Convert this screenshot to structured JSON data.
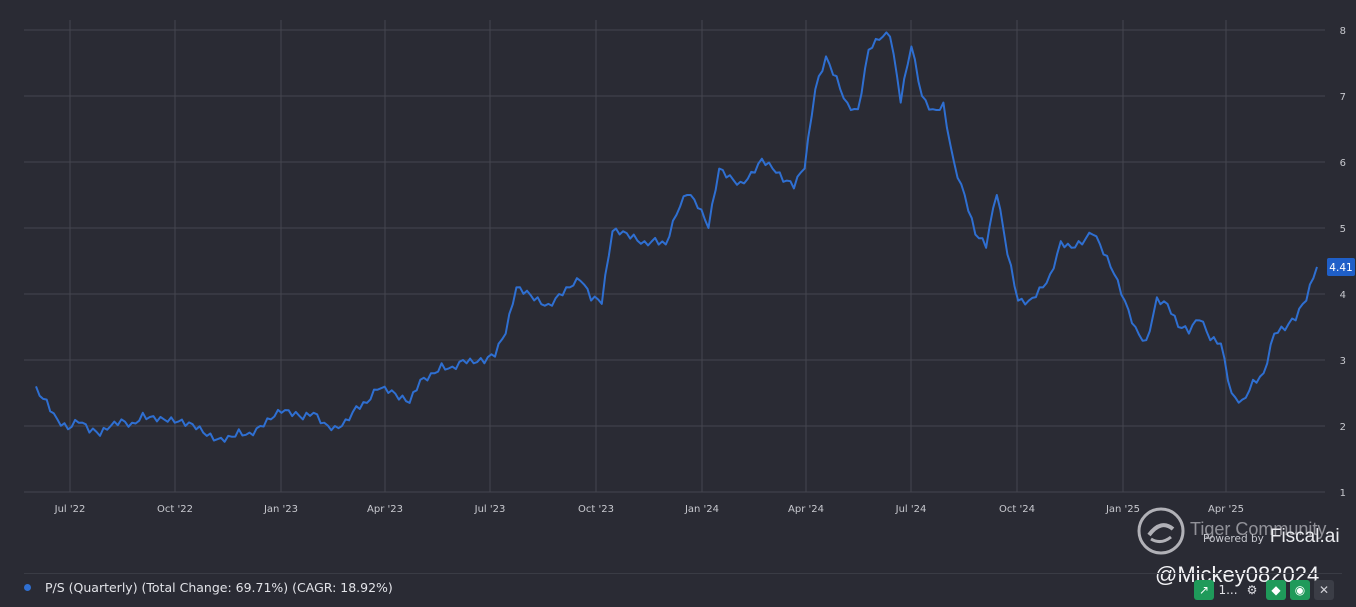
{
  "chart_data": {
    "type": "line",
    "title": "",
    "xlabel": "",
    "ylabel": "",
    "ylim": [
      1,
      8.1
    ],
    "y_ticks": [
      1,
      2,
      3,
      4,
      5,
      6,
      7,
      8
    ],
    "x_ticks": [
      "Jul '22",
      "Oct '22",
      "Jan '23",
      "Apr '23",
      "Jul '23",
      "Oct '23",
      "Jan '24",
      "Apr '24",
      "Jul '24",
      "Oct '24",
      "Jan '25",
      "Apr '25"
    ],
    "x_range": [
      "Jun '22",
      "Jun '25"
    ],
    "grid": true,
    "legend_position": "bottom-left",
    "last_value_label": "4.41",
    "series": [
      {
        "name": "P/S (Quarterly) (Total Change: 69.71%) (CAGR: 18.92%)",
        "color": "#2f6fd1",
        "values": [
          2.6,
          2.4,
          2.1,
          1.95,
          2.05,
          1.9,
          1.85,
          2.0,
          2.1,
          2.05,
          2.2,
          2.15,
          2.1,
          2.05,
          2.0,
          1.95,
          1.85,
          1.8,
          1.85,
          1.95,
          1.9,
          2.0,
          2.1,
          2.2,
          2.15,
          2.1,
          2.2,
          2.05,
          2.0,
          2.1,
          2.3,
          2.35,
          2.55,
          2.5,
          2.4,
          2.35,
          2.7,
          2.8,
          2.95,
          2.9,
          3.0,
          2.95,
          2.95,
          3.05,
          3.4,
          4.1,
          4.05,
          3.95,
          3.85,
          4.0,
          4.1,
          4.2,
          3.9,
          3.85,
          4.95,
          4.95,
          4.9,
          4.8,
          4.85,
          4.75,
          5.2,
          5.5,
          5.3,
          5.0,
          5.9,
          5.8,
          5.7,
          5.85,
          6.05,
          5.9,
          5.7,
          5.6,
          5.9,
          7.1,
          7.6,
          7.3,
          6.9,
          6.8,
          7.7,
          7.85,
          7.9,
          6.9,
          7.75,
          7.0,
          6.8,
          6.9,
          6.0,
          5.5,
          4.9,
          4.7,
          5.5,
          4.6,
          3.9,
          3.9,
          4.1,
          4.3,
          4.8,
          4.7,
          4.75,
          4.9,
          4.6,
          4.3,
          3.9,
          3.5,
          3.3,
          3.95,
          3.85,
          3.5,
          3.4,
          3.6,
          3.3,
          3.25,
          2.5,
          2.4,
          2.7,
          2.8,
          3.4,
          3.45,
          3.6,
          3.9,
          4.41
        ]
      }
    ]
  },
  "legend": {
    "label": "P/S (Quarterly) (Total Change: 69.71%) (CAGR: 18.92%)"
  },
  "branding": {
    "powered_by": "Powered by",
    "brand": "Fiscal.ai",
    "watermark": "Tiger Community",
    "handle": "@Mickey082024"
  },
  "toolbar": {
    "range_label": "1..."
  }
}
